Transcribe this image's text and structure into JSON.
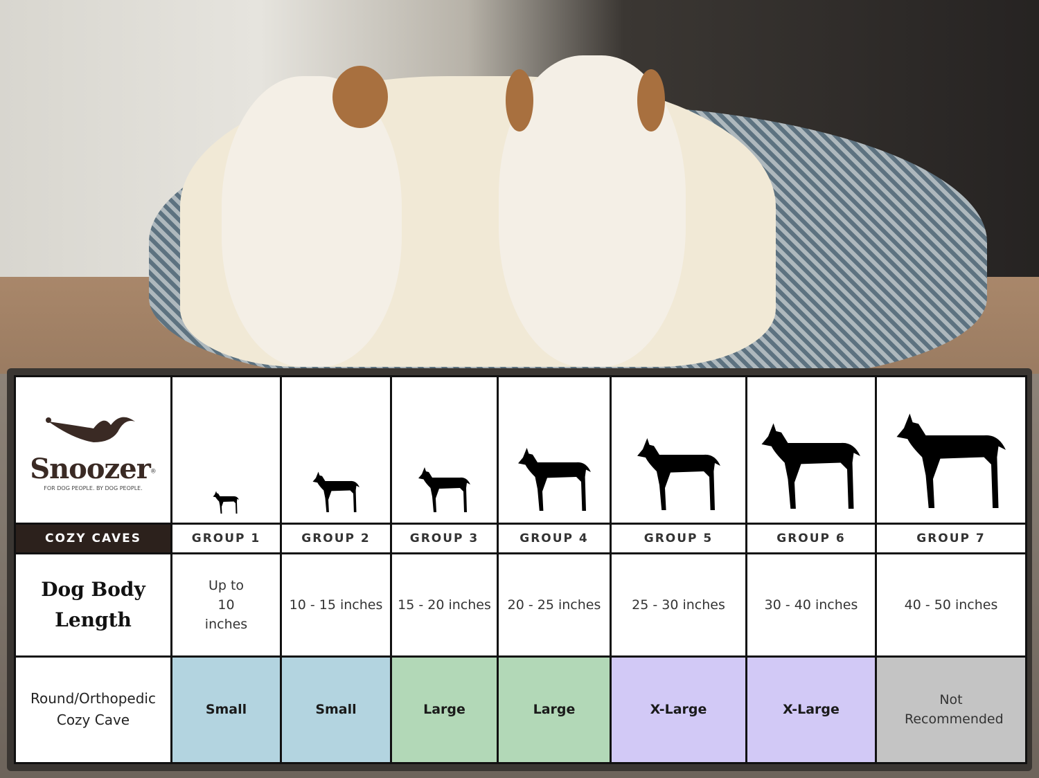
{
  "brand": {
    "name": "Snoozer",
    "trademark": "®",
    "tagline": "FOR DOG PEOPLE. BY DOG PEOPLE.",
    "product_line": "COZY CAVES"
  },
  "colors": {
    "small": "#b3d4e0",
    "large": "#b2d8b7",
    "xlarge": "#d2c9f6",
    "not_recommended": "#c4c4c4",
    "header_dark": "#2c211c"
  },
  "rows": {
    "length_label": "Dog Body Length",
    "size_label": "Round/Orthopedic Cozy Cave"
  },
  "groups": [
    {
      "name": "GROUP 1",
      "length": "Up to 10 inches",
      "size": "Small",
      "color": "#b3d4e0",
      "icon": "chihuahua-silhouette-icon"
    },
    {
      "name": "GROUP 2",
      "length": "10 - 15 inches",
      "size": "Small",
      "color": "#b3d4e0",
      "icon": "pomeranian-silhouette-icon"
    },
    {
      "name": "GROUP 3",
      "length": "15 - 20 inches",
      "size": "Large",
      "color": "#b2d8b7",
      "icon": "boston-terrier-silhouette-icon"
    },
    {
      "name": "GROUP 4",
      "length": "20 - 25 inches",
      "size": "Large",
      "color": "#b2d8b7",
      "icon": "shiba-silhouette-icon"
    },
    {
      "name": "GROUP 5",
      "length": "25 - 30 inches",
      "size": "X-Large",
      "color": "#d2c9f6",
      "icon": "golden-retriever-silhouette-icon"
    },
    {
      "name": "GROUP 6",
      "length": "30 - 40 inches",
      "size": "X-Large",
      "color": "#d2c9f6",
      "icon": "doberman-silhouette-icon"
    },
    {
      "name": "GROUP 7",
      "length": "40 - 50 inches",
      "size": "Not Recommended",
      "color": "#c4c4c4",
      "icon": "great-dane-silhouette-icon"
    }
  ]
}
